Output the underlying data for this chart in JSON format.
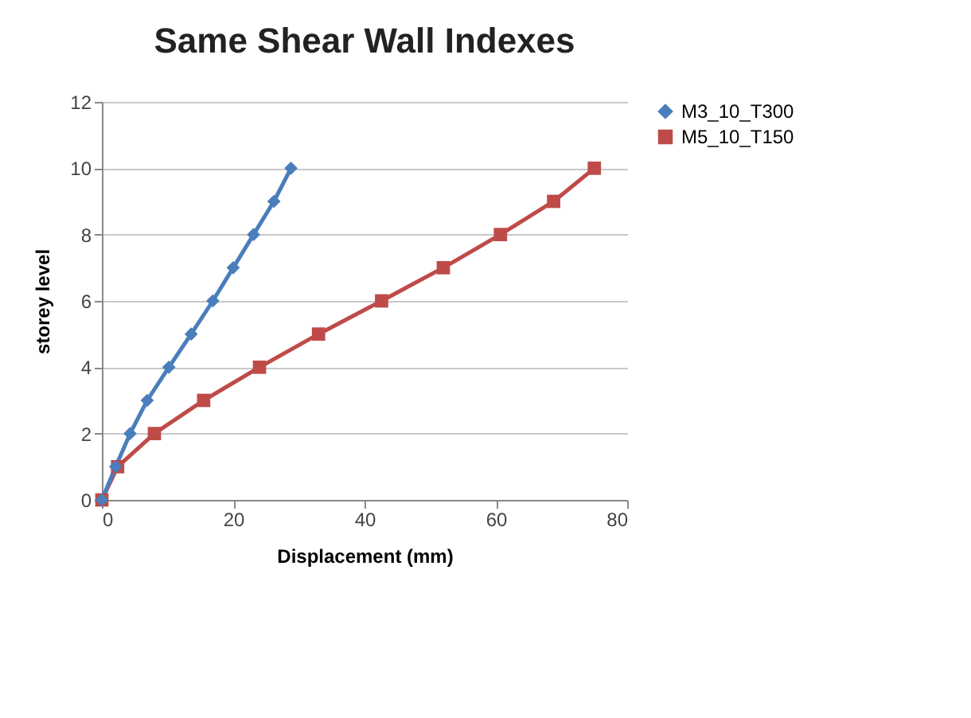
{
  "chart_data": {
    "type": "line",
    "title": "Same Shear Wall Indexes",
    "xlabel": "Displacement (mm)",
    "ylabel": "storey level",
    "xlim": [
      0,
      80
    ],
    "xticks": [
      0,
      20,
      40,
      60,
      80
    ],
    "ylim": [
      0,
      12
    ],
    "yticks": [
      0,
      2,
      4,
      6,
      8,
      10,
      12
    ],
    "grid": "y",
    "legend": "right",
    "series": [
      {
        "name": "M3_10_T300",
        "color": "#4a7ebb",
        "marker": "diamond",
        "x": [
          0,
          2.1,
          4.3,
          6.9,
          10.2,
          13.6,
          16.9,
          20,
          23.1,
          26.2,
          28.8
        ],
        "values": [
          0,
          1,
          2,
          3,
          4,
          5,
          6,
          7,
          8,
          9,
          10
        ]
      },
      {
        "name": "M5_10_T150",
        "color": "#be4b48",
        "marker": "square",
        "x": [
          0,
          2.4,
          8,
          15.5,
          24,
          33,
          42.6,
          52,
          60.7,
          68.8,
          75
        ],
        "values": [
          0,
          1,
          2,
          3,
          4,
          5,
          6,
          7,
          8,
          9,
          10
        ]
      }
    ]
  }
}
